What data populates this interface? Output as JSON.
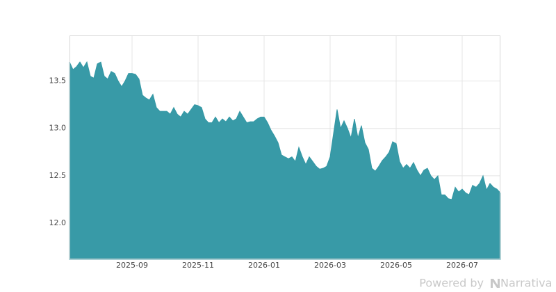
{
  "chart_data": {
    "type": "area",
    "categories": [
      null,
      null,
      null,
      null,
      null,
      null,
      null,
      null,
      null,
      null,
      null,
      null,
      null,
      null,
      null,
      null,
      null,
      null,
      "2025-09",
      null,
      null,
      null,
      null,
      null,
      null,
      null,
      null,
      null,
      null,
      null,
      null,
      null,
      null,
      null,
      null,
      null,
      null,
      "2025-11",
      null,
      null,
      null,
      null,
      null,
      null,
      null,
      null,
      null,
      null,
      null,
      null,
      null,
      null,
      null,
      null,
      null,
      null,
      "2026-01",
      null,
      null,
      null,
      null,
      null,
      null,
      null,
      null,
      null,
      null,
      null,
      null,
      null,
      null,
      null,
      null,
      null,
      null,
      "2026-03",
      null,
      null,
      null,
      null,
      null,
      null,
      null,
      null,
      null,
      null,
      null,
      null,
      null,
      null,
      null,
      null,
      null,
      null,
      "2026-05",
      null,
      null,
      null,
      null,
      null,
      null,
      null,
      null,
      null,
      null,
      null,
      null,
      null,
      null,
      null,
      null,
      null,
      null,
      "2026-07",
      null,
      null,
      null,
      null,
      null,
      null,
      null,
      null,
      null,
      null,
      null
    ],
    "values": [
      13.7,
      13.62,
      13.65,
      13.7,
      13.64,
      13.7,
      13.55,
      13.53,
      13.68,
      13.7,
      13.55,
      13.52,
      13.6,
      13.58,
      13.5,
      13.44,
      13.5,
      13.58,
      13.58,
      13.57,
      13.52,
      13.35,
      13.32,
      13.3,
      13.36,
      13.22,
      13.18,
      13.18,
      13.18,
      13.15,
      13.22,
      13.15,
      13.12,
      13.18,
      13.15,
      13.2,
      13.25,
      13.24,
      13.22,
      13.1,
      13.06,
      13.06,
      13.12,
      13.06,
      13.1,
      13.07,
      13.12,
      13.08,
      13.1,
      13.18,
      13.12,
      13.06,
      13.07,
      13.07,
      13.1,
      13.12,
      13.12,
      13.06,
      12.98,
      12.92,
      12.85,
      12.72,
      12.7,
      12.68,
      12.7,
      12.65,
      12.8,
      12.7,
      12.62,
      12.7,
      12.65,
      12.6,
      12.57,
      12.58,
      12.6,
      12.7,
      12.95,
      13.2,
      13.0,
      13.08,
      13.0,
      12.9,
      13.1,
      12.9,
      13.03,
      12.85,
      12.78,
      12.58,
      12.55,
      12.6,
      12.66,
      12.7,
      12.75,
      12.86,
      12.84,
      12.65,
      12.58,
      12.62,
      12.58,
      12.64,
      12.56,
      12.5,
      12.56,
      12.58,
      12.5,
      12.46,
      12.5,
      12.3,
      12.3,
      12.26,
      12.25,
      12.38,
      12.33,
      12.36,
      12.32,
      12.3,
      12.4,
      12.38,
      12.42,
      12.5,
      12.35,
      12.42,
      12.38,
      12.36,
      12.32
    ],
    "color": "#3498a5",
    "ylim": [
      11.62,
      13.98
    ],
    "yticks": [
      {
        "value": 12,
        "label": "12.0"
      },
      12.5,
      {
        "value": 13,
        "label": "13.0"
      },
      13.5
    ],
    "grid": true,
    "credit": [
      "Powered by",
      "Narrativa"
    ]
  }
}
